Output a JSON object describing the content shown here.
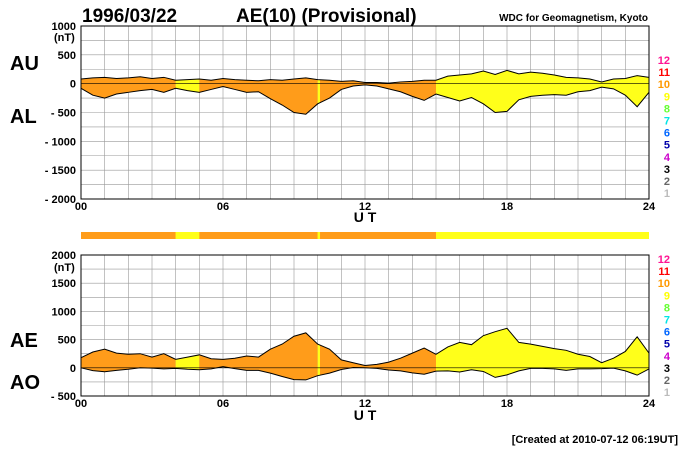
{
  "header": {
    "date": "1996/03/22",
    "title": "AE(10) (Provisional)",
    "source": "WDC for Geomagnetism, Kyoto"
  },
  "footer": {
    "created": "[Created at 2010-07-12 06:19UT]"
  },
  "colors": {
    "fill_ten": "#ff9c1a",
    "fill_nine": "#ffff1a",
    "trace": "#000000",
    "grid": "#999999"
  },
  "station_scale": {
    "labels": [
      "12",
      "11",
      "10",
      "9",
      "8",
      "7",
      "6",
      "5",
      "4",
      "3",
      "2",
      "1"
    ],
    "colors": [
      "#ff1493",
      "#ff0000",
      "#ff9900",
      "#ffff00",
      "#66ff33",
      "#00e5e5",
      "#0066ff",
      "#0000aa",
      "#cc00cc",
      "#000000",
      "#666666",
      "#bbbbbb"
    ]
  },
  "chart_data": [
    {
      "type": "area",
      "name": "AU/AL",
      "left_labels": [
        "AU",
        "AL"
      ],
      "y_unit": "(nT)",
      "ylim": [
        -2000,
        1000
      ],
      "yticks": [
        "1000",
        "500",
        "0",
        "- 500",
        "- 1000",
        "- 1500",
        "- 2000"
      ],
      "xlim": [
        0,
        24
      ],
      "xticks": [
        "00",
        "06",
        "12",
        "18",
        "24"
      ],
      "xlabel": "U T",
      "grid": true,
      "series": [
        {
          "name": "AU",
          "x": [
            0,
            0.5,
            1,
            1.5,
            2,
            2.5,
            3,
            3.5,
            4,
            4.5,
            5,
            5.5,
            6,
            6.5,
            7,
            7.5,
            8,
            8.5,
            9,
            9.5,
            10,
            10.5,
            11,
            11.5,
            12,
            12.5,
            13,
            13.5,
            14,
            14.5,
            15,
            15.5,
            16,
            16.5,
            17,
            17.5,
            18,
            18.5,
            19,
            19.5,
            20,
            20.5,
            21,
            21.5,
            22,
            22.5,
            23,
            23.5,
            24
          ],
          "values": [
            80,
            100,
            110,
            90,
            100,
            120,
            90,
            110,
            60,
            70,
            80,
            60,
            90,
            70,
            60,
            50,
            70,
            60,
            80,
            100,
            70,
            60,
            40,
            50,
            20,
            20,
            10,
            30,
            40,
            60,
            60,
            130,
            150,
            170,
            220,
            160,
            230,
            170,
            200,
            180,
            150,
            110,
            100,
            80,
            30,
            80,
            90,
            140,
            110
          ]
        },
        {
          "name": "AL",
          "x": [
            0,
            0.5,
            1,
            1.5,
            2,
            2.5,
            3,
            3.5,
            4,
            4.5,
            5,
            5.5,
            6,
            6.5,
            7,
            7.5,
            8,
            8.5,
            9,
            9.5,
            10,
            10.5,
            11,
            11.5,
            12,
            12.5,
            13,
            13.5,
            14,
            14.5,
            15,
            15.5,
            16,
            16.5,
            17,
            17.5,
            18,
            18.5,
            19,
            19.5,
            20,
            20.5,
            21,
            21.5,
            22,
            22.5,
            23,
            23.5,
            24
          ],
          "values": [
            -80,
            -200,
            -250,
            -180,
            -150,
            -120,
            -100,
            -150,
            -80,
            -120,
            -150,
            -100,
            -50,
            -100,
            -150,
            -140,
            -260,
            -370,
            -500,
            -530,
            -350,
            -250,
            -100,
            -40,
            -20,
            -40,
            -90,
            -140,
            -220,
            -290,
            -180,
            -240,
            -300,
            -240,
            -350,
            -500,
            -480,
            -280,
            -220,
            -200,
            -190,
            -200,
            -140,
            -120,
            -60,
            -90,
            -200,
            -400,
            -150
          ]
        }
      ],
      "segments": [
        {
          "from": 0,
          "to": 4,
          "stations": 10
        },
        {
          "from": 4,
          "to": 5,
          "stations": 9
        },
        {
          "from": 5,
          "to": 10,
          "stations": 10
        },
        {
          "from": 10,
          "to": 10.1,
          "stations": 9
        },
        {
          "from": 10.1,
          "to": 15,
          "stations": 10
        },
        {
          "from": 15,
          "to": 24,
          "stations": 9
        }
      ]
    },
    {
      "type": "area",
      "name": "AE/AO",
      "left_labels": [
        "AE",
        "AO"
      ],
      "y_unit": "(nT)",
      "ylim": [
        -500,
        2000
      ],
      "yticks": [
        "2000",
        "1500",
        "1000",
        "500",
        "0",
        "- 500"
      ],
      "xlim": [
        0,
        24
      ],
      "xticks": [
        "00",
        "06",
        "12",
        "18",
        "24"
      ],
      "xlabel": "U T",
      "grid": true,
      "series": [
        {
          "name": "AE",
          "x": [
            0,
            0.5,
            1,
            1.5,
            2,
            2.5,
            3,
            3.5,
            4,
            4.5,
            5,
            5.5,
            6,
            6.5,
            7,
            7.5,
            8,
            8.5,
            9,
            9.5,
            10,
            10.5,
            11,
            11.5,
            12,
            12.5,
            13,
            13.5,
            14,
            14.5,
            15,
            15.5,
            16,
            16.5,
            17,
            17.5,
            18,
            18.5,
            19,
            19.5,
            20,
            20.5,
            21,
            21.5,
            22,
            22.5,
            23,
            23.5,
            24
          ],
          "values": [
            180,
            280,
            330,
            260,
            240,
            250,
            190,
            250,
            150,
            190,
            230,
            160,
            150,
            170,
            210,
            190,
            330,
            420,
            560,
            620,
            420,
            330,
            140,
            90,
            40,
            60,
            100,
            170,
            260,
            350,
            240,
            370,
            450,
            410,
            570,
            640,
            700,
            450,
            420,
            380,
            340,
            310,
            240,
            200,
            90,
            170,
            290,
            550,
            260
          ]
        },
        {
          "name": "AO",
          "x": [
            0,
            0.5,
            1,
            1.5,
            2,
            2.5,
            3,
            3.5,
            4,
            4.5,
            5,
            5.5,
            6,
            6.5,
            7,
            7.5,
            8,
            8.5,
            9,
            9.5,
            10,
            10.5,
            11,
            11.5,
            12,
            12.5,
            13,
            13.5,
            14,
            14.5,
            15,
            15.5,
            16,
            16.5,
            17,
            17.5,
            18,
            18.5,
            19,
            19.5,
            20,
            20.5,
            21,
            21.5,
            22,
            22.5,
            23,
            23.5,
            24
          ],
          "values": [
            0,
            -50,
            -70,
            -45,
            -25,
            0,
            -5,
            -20,
            -10,
            -25,
            -35,
            -20,
            20,
            -15,
            -45,
            -45,
            -95,
            -155,
            -210,
            -215,
            -140,
            -95,
            -30,
            5,
            0,
            -10,
            -40,
            -55,
            -90,
            -115,
            -60,
            -55,
            -75,
            -35,
            -65,
            -170,
            -125,
            -55,
            -10,
            -10,
            -20,
            -45,
            -20,
            -20,
            -15,
            -5,
            -55,
            -130,
            -20
          ]
        }
      ],
      "segments": [
        {
          "from": 0,
          "to": 4,
          "stations": 10
        },
        {
          "from": 4,
          "to": 5,
          "stations": 9
        },
        {
          "from": 5,
          "to": 10,
          "stations": 10
        },
        {
          "from": 10,
          "to": 10.1,
          "stations": 9
        },
        {
          "from": 10.1,
          "to": 15,
          "stations": 10
        },
        {
          "from": 15,
          "to": 24,
          "stations": 9
        }
      ]
    }
  ]
}
